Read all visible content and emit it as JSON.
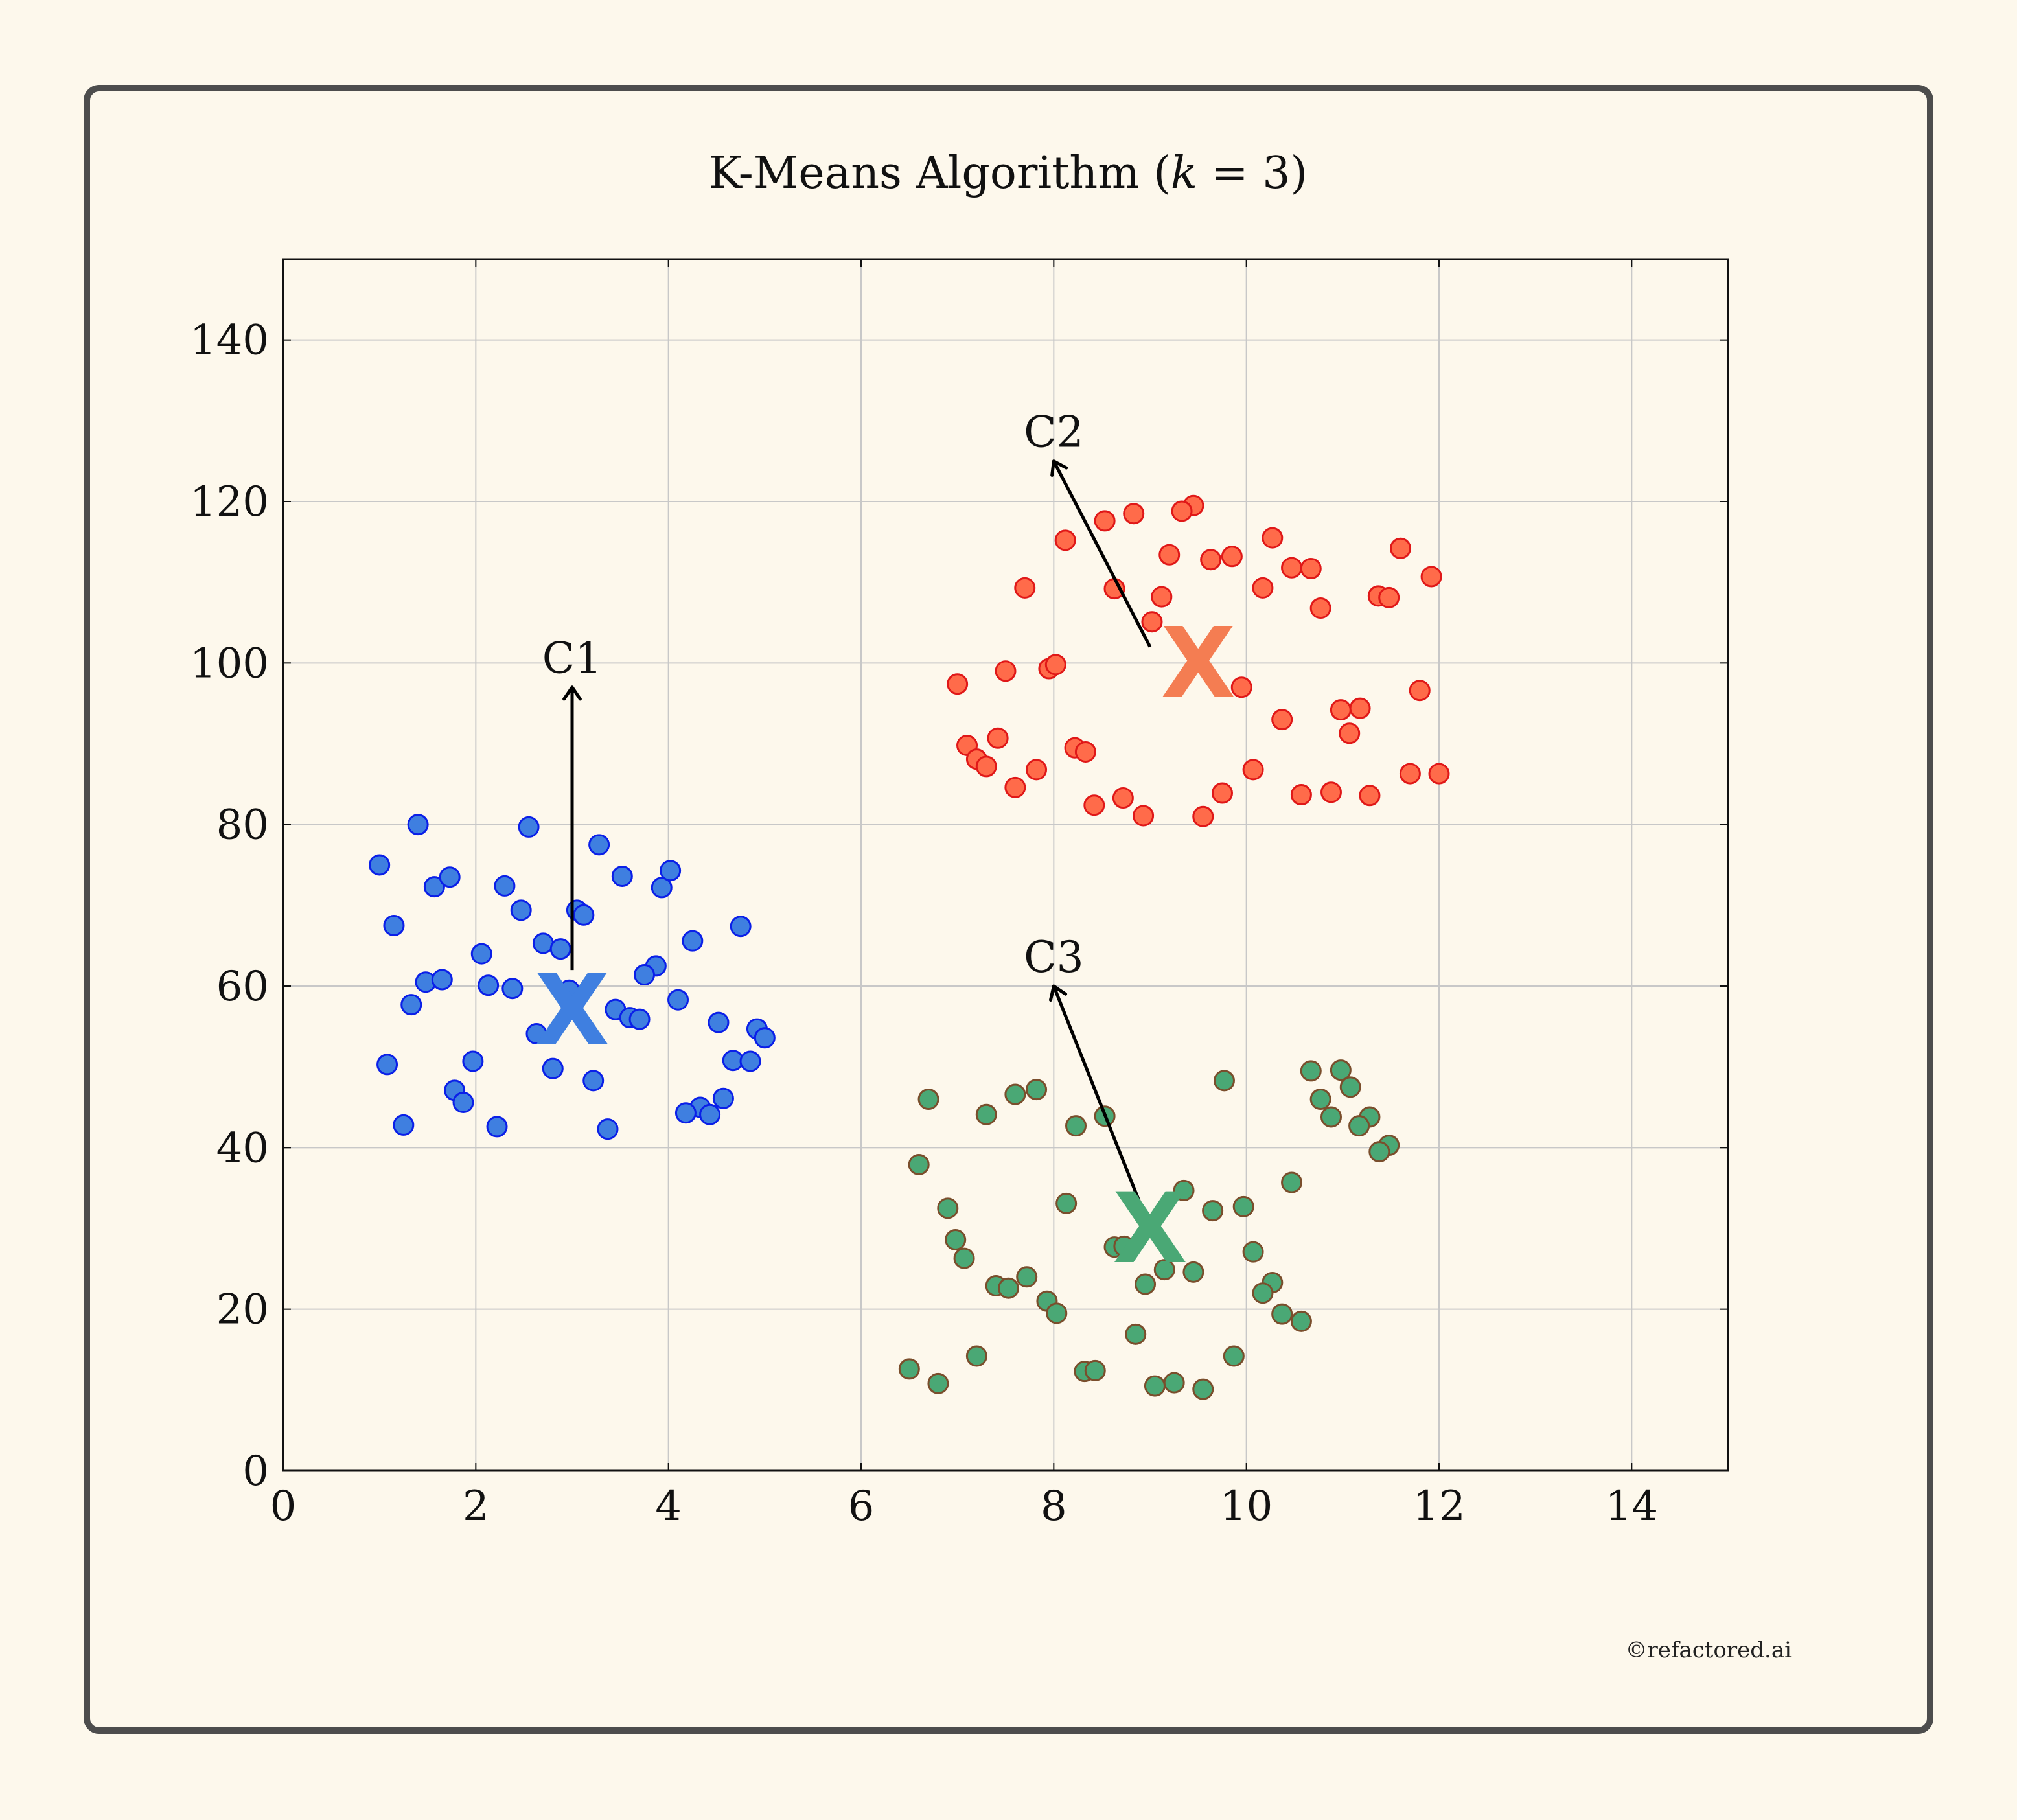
{
  "chart_data": {
    "type": "scatter",
    "title": "K-Means Algorithm (k = 3)",
    "title_parts": [
      "K-Means Algorithm (",
      "k",
      " = 3)"
    ],
    "xlabel": "",
    "ylabel": "",
    "xlim": [
      0,
      15
    ],
    "ylim": [
      0,
      150
    ],
    "xticks": [
      0,
      2,
      4,
      6,
      8,
      10,
      12,
      14
    ],
    "yticks": [
      0,
      20,
      40,
      60,
      80,
      100,
      120,
      140
    ],
    "grid": true,
    "series": [
      {
        "color": "#3f7fe0",
        "edge": "#0a1fe8",
        "points": [
          [
            1.0,
            75
          ],
          [
            1.4,
            80
          ],
          [
            2.55,
            79.7
          ],
          [
            1.15,
            67.5
          ],
          [
            1.57,
            72.3
          ],
          [
            1.73,
            73.5
          ],
          [
            2.3,
            72.4
          ],
          [
            2.47,
            69.4
          ],
          [
            3.28,
            77.5
          ],
          [
            3.52,
            73.6
          ],
          [
            3.93,
            72.2
          ],
          [
            4.02,
            74.3
          ],
          [
            4.75,
            67.4
          ],
          [
            4.25,
            65.6
          ],
          [
            3.05,
            69.4
          ],
          [
            3.12,
            68.8
          ],
          [
            2.7,
            65.3
          ],
          [
            2.88,
            64.6
          ],
          [
            2.06,
            64
          ],
          [
            3.87,
            62.5
          ],
          [
            3.75,
            61.4
          ],
          [
            1.48,
            60.5
          ],
          [
            1.65,
            60.8
          ],
          [
            2.13,
            60.1
          ],
          [
            2.38,
            59.7
          ],
          [
            2.97,
            59.5
          ],
          [
            1.33,
            57.7
          ],
          [
            4.1,
            58.3
          ],
          [
            3.45,
            57.1
          ],
          [
            3.6,
            56.1
          ],
          [
            3.7,
            55.9
          ],
          [
            4.52,
            55.5
          ],
          [
            2.63,
            54.1
          ],
          [
            4.92,
            54.7
          ],
          [
            5.0,
            53.6
          ],
          [
            1.08,
            50.3
          ],
          [
            1.97,
            50.7
          ],
          [
            2.8,
            49.8
          ],
          [
            4.67,
            50.8
          ],
          [
            4.85,
            50.7
          ],
          [
            3.22,
            48.3
          ],
          [
            1.78,
            47.1
          ],
          [
            1.87,
            45.6
          ],
          [
            4.57,
            46.1
          ],
          [
            4.33,
            45
          ],
          [
            4.43,
            44.1
          ],
          [
            4.18,
            44.3
          ],
          [
            1.25,
            42.8
          ],
          [
            2.22,
            42.6
          ],
          [
            3.37,
            42.3
          ]
        ]
      },
      {
        "color": "#ff6b4a",
        "edge": "#e01818",
        "points": [
          [
            9.45,
            119.5
          ],
          [
            9.33,
            118.8
          ],
          [
            8.83,
            118.5
          ],
          [
            8.53,
            117.6
          ],
          [
            8.12,
            115.2
          ],
          [
            10.27,
            115.5
          ],
          [
            11.6,
            114.2
          ],
          [
            9.2,
            113.4
          ],
          [
            9.63,
            112.8
          ],
          [
            9.85,
            113.2
          ],
          [
            10.47,
            111.8
          ],
          [
            10.67,
            111.7
          ],
          [
            11.92,
            110.7
          ],
          [
            7.7,
            109.3
          ],
          [
            8.63,
            109.2
          ],
          [
            10.17,
            109.3
          ],
          [
            9.12,
            108.2
          ],
          [
            11.37,
            108.3
          ],
          [
            11.48,
            108.1
          ],
          [
            10.77,
            106.8
          ],
          [
            9.02,
            105.1
          ],
          [
            7.95,
            99.3
          ],
          [
            8.02,
            99.8
          ],
          [
            7.5,
            99
          ],
          [
            7.0,
            97.4
          ],
          [
            9.95,
            97
          ],
          [
            11.8,
            96.6
          ],
          [
            10.98,
            94.2
          ],
          [
            11.18,
            94.4
          ],
          [
            10.37,
            93
          ],
          [
            11.07,
            91.3
          ],
          [
            7.42,
            90.7
          ],
          [
            7.1,
            89.8
          ],
          [
            8.22,
            89.5
          ],
          [
            8.33,
            89
          ],
          [
            7.2,
            88.1
          ],
          [
            7.3,
            87.2
          ],
          [
            7.82,
            86.8
          ],
          [
            10.07,
            86.8
          ],
          [
            11.7,
            86.3
          ],
          [
            12.0,
            86.3
          ],
          [
            7.6,
            84.6
          ],
          [
            10.57,
            83.7
          ],
          [
            10.88,
            84
          ],
          [
            11.28,
            83.6
          ],
          [
            9.75,
            83.9
          ],
          [
            8.72,
            83.3
          ],
          [
            8.42,
            82.4
          ],
          [
            8.93,
            81.1
          ],
          [
            9.55,
            81
          ]
        ]
      },
      {
        "color": "#4aa875",
        "edge": "#7a4e2c",
        "points": [
          [
            10.67,
            49.5
          ],
          [
            10.98,
            49.6
          ],
          [
            11.08,
            47.5
          ],
          [
            9.77,
            48.3
          ],
          [
            7.82,
            47.2
          ],
          [
            7.6,
            46.6
          ],
          [
            6.7,
            46
          ],
          [
            10.77,
            46
          ],
          [
            11.28,
            43.8
          ],
          [
            10.88,
            43.8
          ],
          [
            11.17,
            42.7
          ],
          [
            7.3,
            44.1
          ],
          [
            8.53,
            43.9
          ],
          [
            8.23,
            42.7
          ],
          [
            11.48,
            40.3
          ],
          [
            11.38,
            39.5
          ],
          [
            6.6,
            37.9
          ],
          [
            10.47,
            35.7
          ],
          [
            9.35,
            34.7
          ],
          [
            8.13,
            33.1
          ],
          [
            9.97,
            32.7
          ],
          [
            6.9,
            32.5
          ],
          [
            9.65,
            32.2
          ],
          [
            6.98,
            28.6
          ],
          [
            8.63,
            27.7
          ],
          [
            8.73,
            27.8
          ],
          [
            7.07,
            26.3
          ],
          [
            10.07,
            27.1
          ],
          [
            9.15,
            24.9
          ],
          [
            9.45,
            24.6
          ],
          [
            7.72,
            24
          ],
          [
            8.95,
            23.1
          ],
          [
            7.4,
            22.9
          ],
          [
            7.53,
            22.6
          ],
          [
            10.27,
            23.3
          ],
          [
            10.17,
            22
          ],
          [
            7.93,
            21
          ],
          [
            8.03,
            19.5
          ],
          [
            10.37,
            19.4
          ],
          [
            10.57,
            18.5
          ],
          [
            8.85,
            16.9
          ],
          [
            7.2,
            14.2
          ],
          [
            9.87,
            14.2
          ],
          [
            6.5,
            12.6
          ],
          [
            8.32,
            12.3
          ],
          [
            8.43,
            12.4
          ],
          [
            6.8,
            10.8
          ],
          [
            9.25,
            10.9
          ],
          [
            9.05,
            10.5
          ],
          [
            9.55,
            10.1
          ]
        ]
      }
    ],
    "centroids": [
      {
        "mark": "X",
        "x": 3.0,
        "y": 57,
        "color": "#3f7fe0"
      },
      {
        "mark": "X",
        "x": 9.5,
        "y": 100,
        "color": "#f47d52"
      },
      {
        "mark": "X",
        "x": 9.0,
        "y": 30,
        "color": "#4aa875"
      }
    ],
    "annotations": [
      {
        "text": "C1",
        "x": 3.0,
        "y": 97,
        "from": [
          3.0,
          62
        ]
      },
      {
        "text": "C2",
        "x": 8.0,
        "y": 125,
        "from": [
          9.0,
          102
        ]
      },
      {
        "text": "C3",
        "x": 8.0,
        "y": 60,
        "from": [
          8.9,
          33
        ]
      }
    ]
  },
  "credit": "©refactored.ai"
}
